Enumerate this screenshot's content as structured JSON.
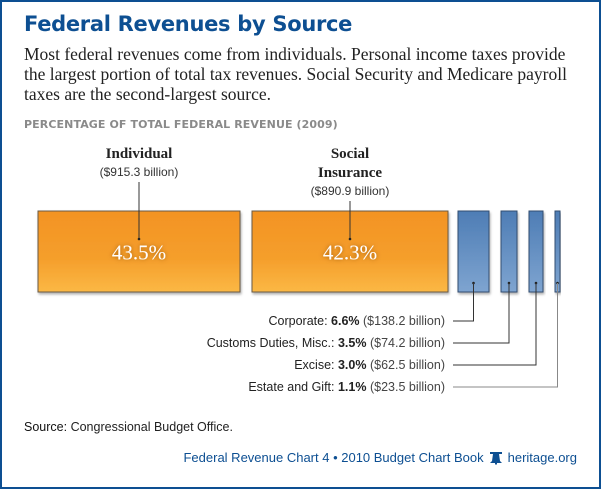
{
  "title": "Federal Revenues by Source",
  "subtitle": "Most federal revenues come from individuals. Personal income taxes provide the largest portion of total tax revenues. Social Security and Medicare payroll taxes are the second-largest source.",
  "axis_title": "PERCENTAGE OF TOTAL FEDERAL REVENUE (2009)",
  "source_label": "Source:",
  "source_text": "Congressional Budget Office.",
  "footer": {
    "text": "Federal Revenue Chart 4 • 2010 Budget Chart Book",
    "icon": "liberty-bell-icon",
    "site": "heritage.org"
  },
  "colors": {
    "brand": "#0d4f92",
    "large_fill_top": "#f39323",
    "large_fill_bottom": "#fbb845",
    "small_fill_top": "#4e7db5",
    "small_fill_bottom": "#7ea4d0"
  },
  "chart_data": {
    "type": "bar",
    "title": "Federal Revenues by Source",
    "subtitle": "PERCENTAGE OF TOTAL FEDERAL REVENUE (2009)",
    "categories": [
      "Individual",
      "Social Insurance",
      "Corporate",
      "Customs Duties, Misc.",
      "Excise",
      "Estate and Gift"
    ],
    "values": [
      43.5,
      42.3,
      6.6,
      3.5,
      3.0,
      1.1
    ],
    "amounts": [
      "($915.3 billion)",
      "($890.9 billion)",
      "($138.2 billion)",
      "($74.2 billion)",
      "($62.5 billion)",
      "($23.5 billion)"
    ],
    "value_labels": [
      "43.5%",
      "42.3%",
      "6.6%",
      "3.5%",
      "3.0%",
      "1.1%"
    ],
    "large": [
      {
        "name_lines": [
          "Individual"
        ],
        "amount": "($915.3 billion)",
        "pct_label": "43.5%",
        "value": 43.5
      },
      {
        "name_lines": [
          "Social",
          "Insurance"
        ],
        "amount": "($890.9 billion)",
        "pct_label": "42.3%",
        "value": 42.3
      }
    ],
    "small": [
      {
        "name": "Corporate:",
        "pct_label": "6.6%",
        "amount": "($138.2 billion)",
        "value": 6.6
      },
      {
        "name": "Customs Duties, Misc.:",
        "pct_label": "3.5%",
        "amount": "($74.2 billion)",
        "value": 3.5
      },
      {
        "name": "Excise:",
        "pct_label": "3.0%",
        "amount": "($62.5 billion)",
        "value": 3.0
      },
      {
        "name": "Estate and Gift:",
        "pct_label": "1.1%",
        "amount": "($23.5 billion)",
        "value": 1.1
      }
    ],
    "xlabel": "",
    "ylabel": "",
    "units": "percent of total federal revenue"
  }
}
